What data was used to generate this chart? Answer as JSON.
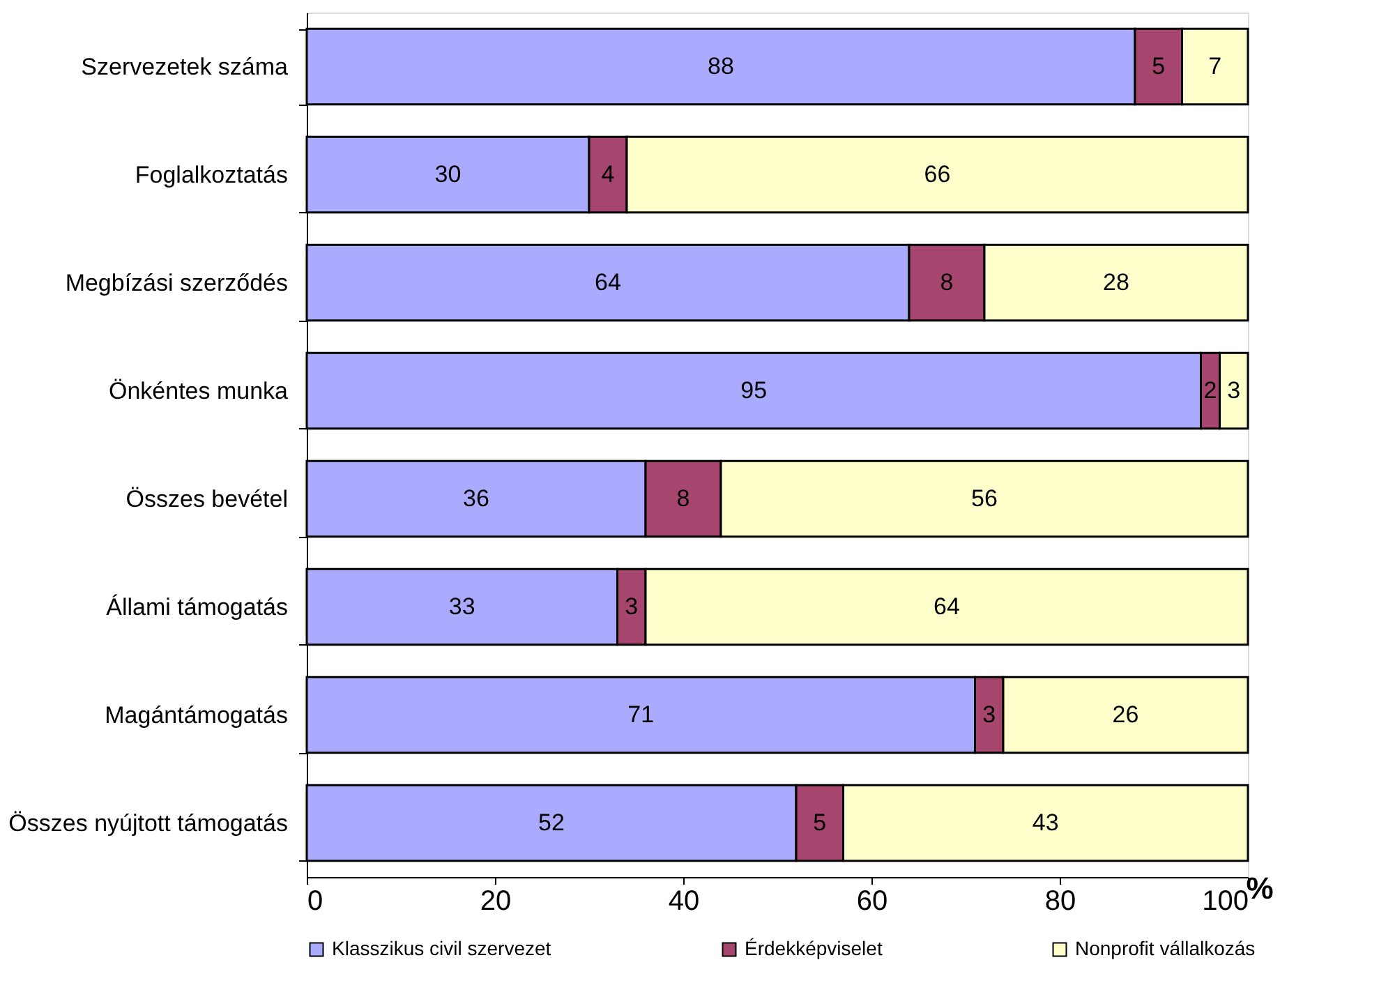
{
  "chart_data": {
    "type": "bar",
    "orientation": "horizontal",
    "stacked": true,
    "data_labels": true,
    "legend": "bottom",
    "grid": false,
    "xlabel": "%",
    "categories": [
      "Szervezetek száma",
      "Foglalkoztatás",
      "Megbízási szerződés",
      "Önkéntes munka",
      "Összes bevétel",
      "Állami támogatás",
      "Magántámogatás",
      "Összes nyújtott támogatás"
    ],
    "series": [
      {
        "name": "Klasszikus civil szervezet",
        "color": "#aaaaff",
        "values": [
          88,
          30,
          64,
          95,
          36,
          33,
          71,
          52
        ]
      },
      {
        "name": "Érdekképviselet",
        "color": "#a6466f",
        "values": [
          5,
          4,
          8,
          2,
          8,
          3,
          3,
          5
        ]
      },
      {
        "name": "Nonprofit vállalkozás",
        "color": "#ffffcc",
        "values": [
          7,
          66,
          28,
          3,
          56,
          64,
          26,
          43
        ]
      }
    ],
    "xlim": [
      0,
      100
    ],
    "xticks": [
      0,
      20,
      40,
      60,
      80,
      100
    ]
  }
}
